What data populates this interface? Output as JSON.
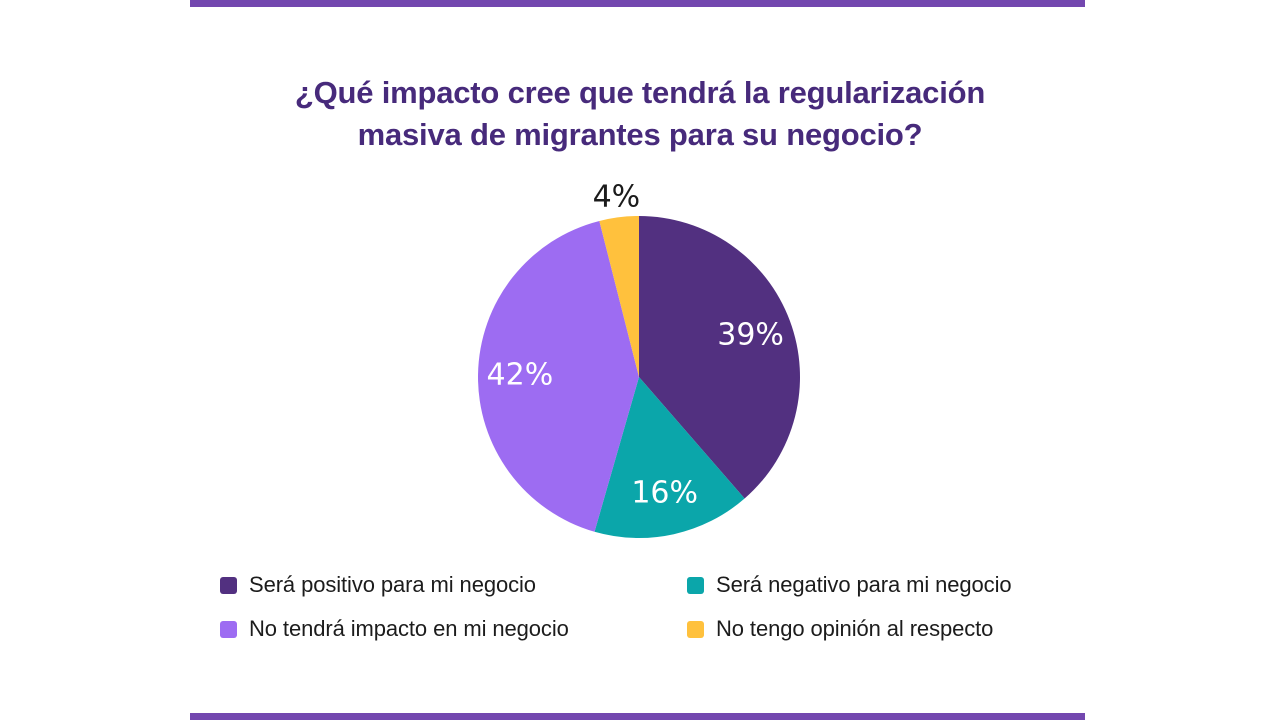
{
  "page": {
    "background_color": "#FFFFFF",
    "accent_bar_color": "#7347AF"
  },
  "title": {
    "lines": [
      "¿Qué impacto cree que tendrá la regularización",
      "masiva de migrantes para su negocio?"
    ],
    "color": "#472A7B"
  },
  "chart_data": {
    "type": "pie",
    "title": "¿Qué impacto cree que tendrá la regularización masiva de migrantes para su negocio?",
    "start_angle": "12 o'clock, clockwise",
    "legend_position": "bottom",
    "legend_columns": 2,
    "slices": [
      {
        "label": "Será positivo para mi negocio",
        "value": 39,
        "display": "39%",
        "color": "#523080",
        "label_color": "#FFFFFF",
        "label_placement": "inside"
      },
      {
        "label": "Será negativo para mi negocio",
        "value": 16,
        "display": "16%",
        "color": "#0BA6AA",
        "label_color": "#FFFFFF",
        "label_placement": "inside"
      },
      {
        "label": "No tendrá impacto en mi negocio",
        "value": 42,
        "display": "42%",
        "color": "#9D6CF2",
        "label_color": "#FFFFFF",
        "label_placement": "inside"
      },
      {
        "label": "No tengo opinión al respecto",
        "value": 4,
        "display": "4%",
        "color": "#FFC13D",
        "label_color": "#1B1B1B",
        "label_placement": "outside"
      }
    ]
  },
  "legend": {
    "text_color": "#1C1C1C",
    "items": [
      {
        "label": "Será positivo para mi negocio",
        "color": "#523080"
      },
      {
        "label": "Será negativo para mi negocio",
        "color": "#0BA6AA"
      },
      {
        "label": "No tendrá impacto en mi negocio",
        "color": "#9D6CF2"
      },
      {
        "label": "No tengo opinión al respecto",
        "color": "#FFC13D"
      }
    ]
  }
}
